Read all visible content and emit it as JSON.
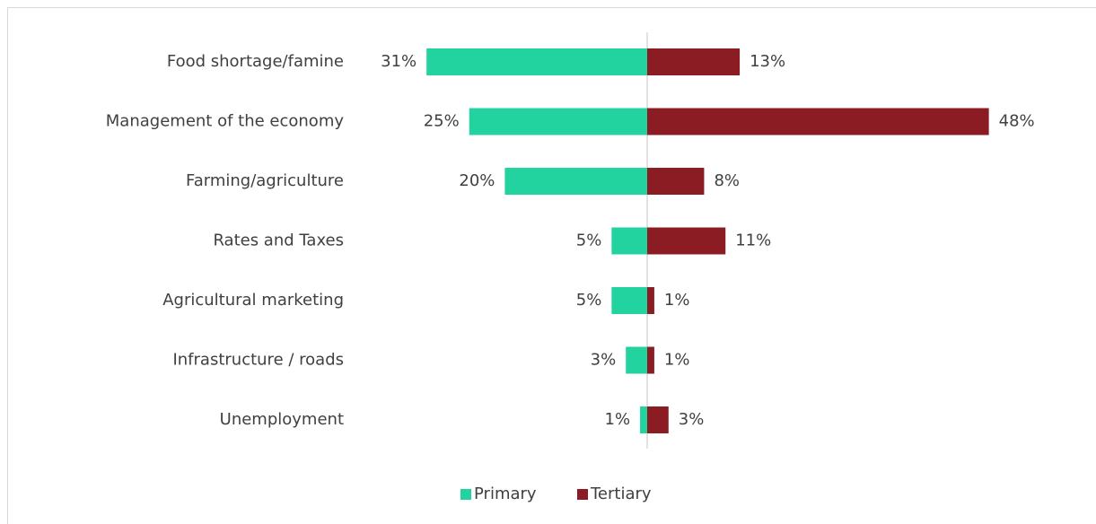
{
  "chart_data": {
    "type": "diverging-bar",
    "categories": [
      "Food shortage/famine",
      "Management of the economy",
      "Farming/agriculture",
      "Rates and Taxes",
      "Agricultural marketing",
      "Infrastructure / roads",
      "Unemployment"
    ],
    "series": [
      {
        "name": "Primary",
        "color": "#22d3a0",
        "values": [
          31,
          25,
          20,
          5,
          5,
          3,
          1
        ],
        "value_labels": [
          "31%",
          "25%",
          "20%",
          "5%",
          "5%",
          "3%",
          "1%"
        ]
      },
      {
        "name": "Tertiary",
        "color": "#8b1c23",
        "values": [
          13,
          48,
          8,
          11,
          1,
          1,
          3
        ],
        "value_labels": [
          "13%",
          "48%",
          "8%",
          "11%",
          "1%",
          "1%",
          "3%"
        ]
      }
    ],
    "legend": "bottom"
  }
}
